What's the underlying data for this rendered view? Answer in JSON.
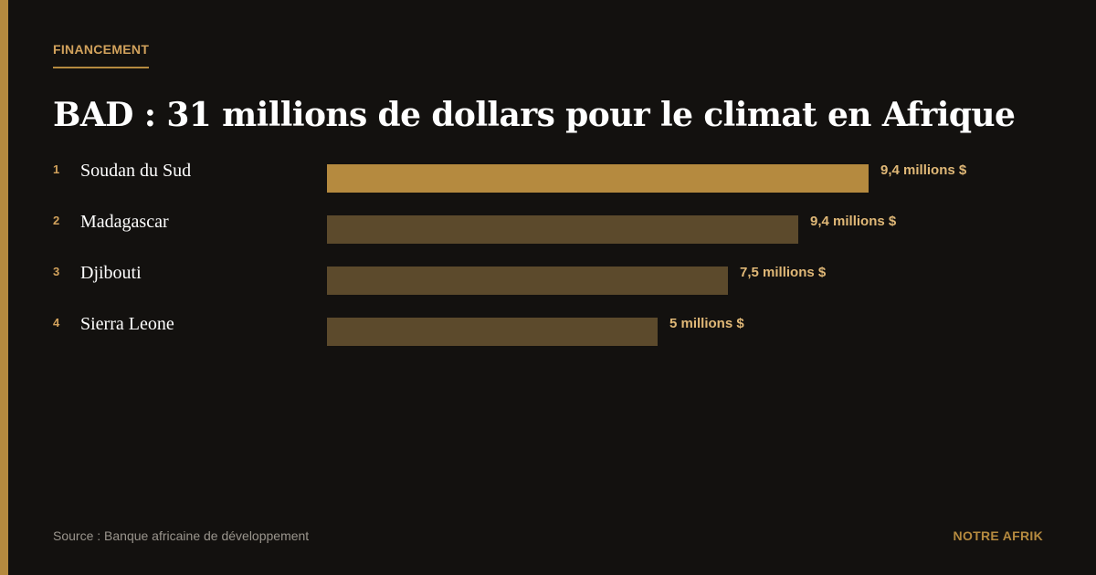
{
  "header": {
    "kicker": "FINANCEMENT",
    "title": "BAD : 31 millions de dollars pour le climat en Afrique"
  },
  "footer": {
    "source": "Source : Banque africaine de développement",
    "brand": "NOTRE AFRIK"
  },
  "colors": {
    "highlight_bar": "#b58a3f",
    "muted_bar": "#5c4a2c",
    "background": "#13110f"
  },
  "chart_data": {
    "type": "bar",
    "orientation": "horizontal",
    "categories": [
      "Soudan du Sud",
      "Madagascar",
      "Djibouti",
      "Sierra Leone"
    ],
    "ranks": [
      "1",
      "2",
      "3",
      "4"
    ],
    "values": [
      9.4,
      9.4,
      7.5,
      5
    ],
    "value_labels": [
      "9,4 millions $",
      "9,4 millions $",
      "7,5 millions $",
      "5 millions $"
    ],
    "unit": "millions $",
    "highlight_index": 0
  }
}
